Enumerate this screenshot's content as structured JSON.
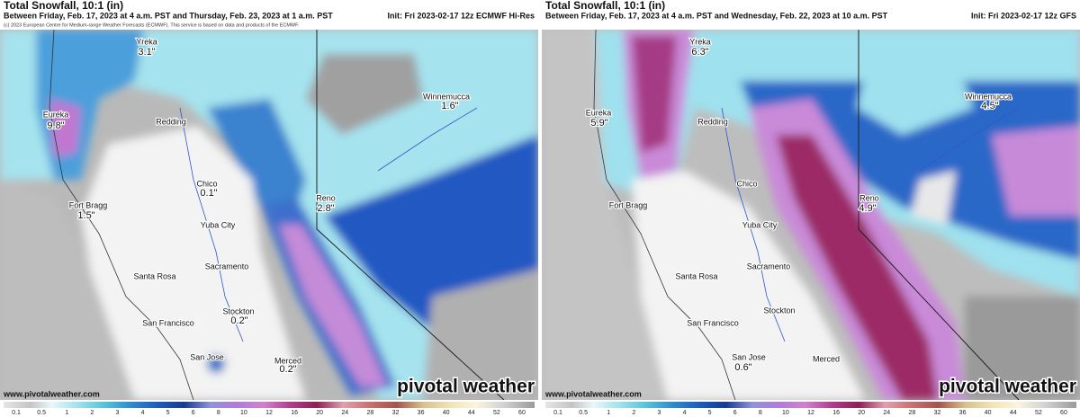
{
  "panels": [
    {
      "title": "Total Snowfall, 10:1 (in)",
      "period": "Between Friday, Feb. 17, 2023 at 4 a.m. PST and Thursday, Feb. 23, 2023 at 1 a.m. PST",
      "init": "Init: Fri 2023-02-17 12z ECMWF Hi-Res",
      "credit": "(c) 2023 European Centre for Medium-range Weather Forecasts (ECMWF). This service is based on data and products of the ECMWF.",
      "cities": [
        {
          "name": "Yreka",
          "amount": "3.1\""
        },
        {
          "name": "Eureka",
          "amount": "9.8\""
        },
        {
          "name": "Redding"
        },
        {
          "name": "Winnemucca",
          "amount": "1.6\""
        },
        {
          "name": "Chico",
          "amount": "0.1\""
        },
        {
          "name": "Fort Bragg",
          "amount": "1.5\""
        },
        {
          "name": "Reno",
          "amount": "2.8\""
        },
        {
          "name": "Yuba City"
        },
        {
          "name": "Sacramento"
        },
        {
          "name": "Santa Rosa"
        },
        {
          "name": "Stockton",
          "amount": "0.2\""
        },
        {
          "name": "San Francisco"
        },
        {
          "name": "San Jose"
        },
        {
          "name": "Merced",
          "amount": "0.2\""
        }
      ],
      "website": "www.pivotalweather.com",
      "logo": "pivotal weather"
    },
    {
      "title": "Total Snowfall, 10:1 (in)",
      "period": "Between Friday, Feb. 17, 2023 at 4 a.m. PST and Wednesday, Feb. 22, 2023 at 10 a.m. PST",
      "init": "Init: Fri 2023-02-17 12z GFS",
      "cities": [
        {
          "name": "Yreka",
          "amount": "6.3\""
        },
        {
          "name": "Eureka",
          "amount": "5.9\""
        },
        {
          "name": "Redding"
        },
        {
          "name": "Winnemucca",
          "amount": "4.5\""
        },
        {
          "name": "Chico"
        },
        {
          "name": "Fort Bragg"
        },
        {
          "name": "Reno",
          "amount": "4.9\""
        },
        {
          "name": "Yuba City"
        },
        {
          "name": "Sacramento"
        },
        {
          "name": "Santa Rosa"
        },
        {
          "name": "Stockton"
        },
        {
          "name": "San Francisco"
        },
        {
          "name": "San Jose",
          "amount": "0.6\""
        },
        {
          "name": "Merced"
        }
      ],
      "website": "www.pivotalweather.com",
      "logo": "pivotal weather"
    }
  ],
  "colorbar": {
    "ticks": [
      0.1,
      0.5,
      1,
      2,
      3,
      4,
      5,
      6,
      8,
      10,
      12,
      16,
      20,
      24,
      28,
      32,
      36,
      40,
      44,
      52,
      60
    ]
  }
}
